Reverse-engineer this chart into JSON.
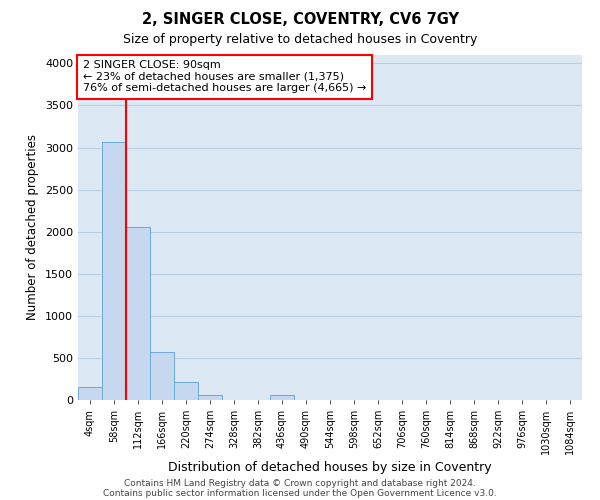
{
  "title1": "2, SINGER CLOSE, COVENTRY, CV6 7GY",
  "title2": "Size of property relative to detached houses in Coventry",
  "xlabel": "Distribution of detached houses by size in Coventry",
  "ylabel": "Number of detached properties",
  "bin_labels": [
    "4sqm",
    "58sqm",
    "112sqm",
    "166sqm",
    "220sqm",
    "274sqm",
    "328sqm",
    "382sqm",
    "436sqm",
    "490sqm",
    "544sqm",
    "598sqm",
    "652sqm",
    "706sqm",
    "760sqm",
    "814sqm",
    "868sqm",
    "922sqm",
    "976sqm",
    "1030sqm",
    "1084sqm"
  ],
  "bar_heights": [
    150,
    3070,
    2060,
    570,
    210,
    65,
    0,
    0,
    55,
    0,
    0,
    0,
    0,
    0,
    0,
    0,
    0,
    0,
    0,
    0,
    0
  ],
  "bar_color": "#c5d8ef",
  "bar_edge_color": "#6aaad4",
  "background_color": "#dce9f5",
  "grid_color": "#b8cce4",
  "red_line_x": 2.0,
  "annotation_text": "2 SINGER CLOSE: 90sqm\n← 23% of detached houses are smaller (1,375)\n76% of semi-detached houses are larger (4,665) →",
  "annotation_box_color": "white",
  "annotation_box_edge": "red",
  "ylim": [
    0,
    4100
  ],
  "yticks": [
    0,
    500,
    1000,
    1500,
    2000,
    2500,
    3000,
    3500,
    4000
  ],
  "footer1": "Contains HM Land Registry data © Crown copyright and database right 2024.",
  "footer2": "Contains public sector information licensed under the Open Government Licence v3.0."
}
